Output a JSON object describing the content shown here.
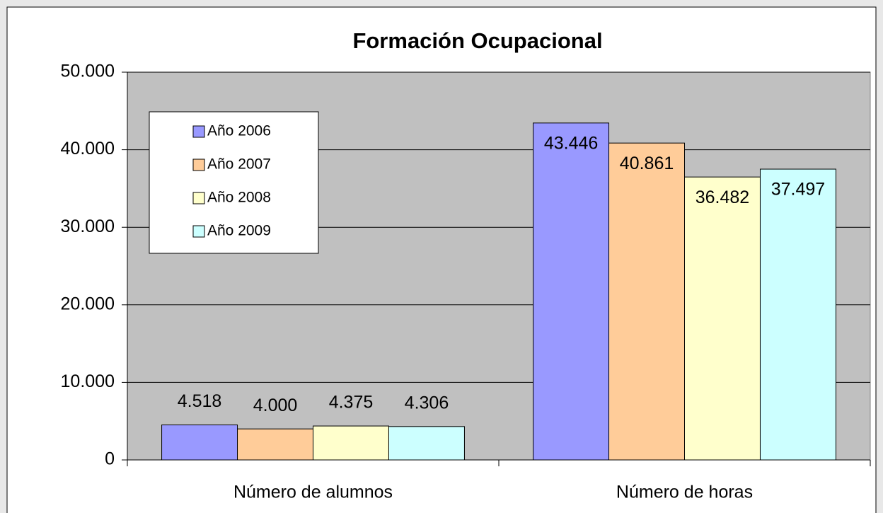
{
  "chart_data": {
    "type": "bar",
    "title": "Formación Ocupacional",
    "categories": [
      "Número de alumnos",
      "Número de horas"
    ],
    "series": [
      {
        "name": "Año 2006",
        "color": "#9999ff",
        "values": [
          4518,
          43446
        ],
        "value_labels": [
          "4.518",
          "43.446"
        ]
      },
      {
        "name": "Año 2007",
        "color": "#ffcc99",
        "values": [
          4000,
          40861
        ],
        "value_labels": [
          "4.000",
          "40.861"
        ]
      },
      {
        "name": "Año 2008",
        "color": "#ffffcc",
        "values": [
          4375,
          36482
        ],
        "value_labels": [
          "4.375",
          "36.482"
        ]
      },
      {
        "name": "Año 2009",
        "color": "#ccffff",
        "values": [
          4306,
          37497
        ],
        "value_labels": [
          "4.306",
          "37.497"
        ]
      }
    ],
    "ylim": [
      0,
      50000
    ],
    "yticks": [
      0,
      {
        "value": 10000,
        "label": "10.000"
      },
      {
        "value": 20000,
        "label": "20.000"
      },
      {
        "value": 30000,
        "label": "30.000"
      },
      {
        "value": 40000,
        "label": "40.000"
      },
      {
        "value": 50000,
        "label": "50.000"
      }
    ],
    "grid": true,
    "legend": "upper-left",
    "plot_background": "#c0c0c0"
  }
}
